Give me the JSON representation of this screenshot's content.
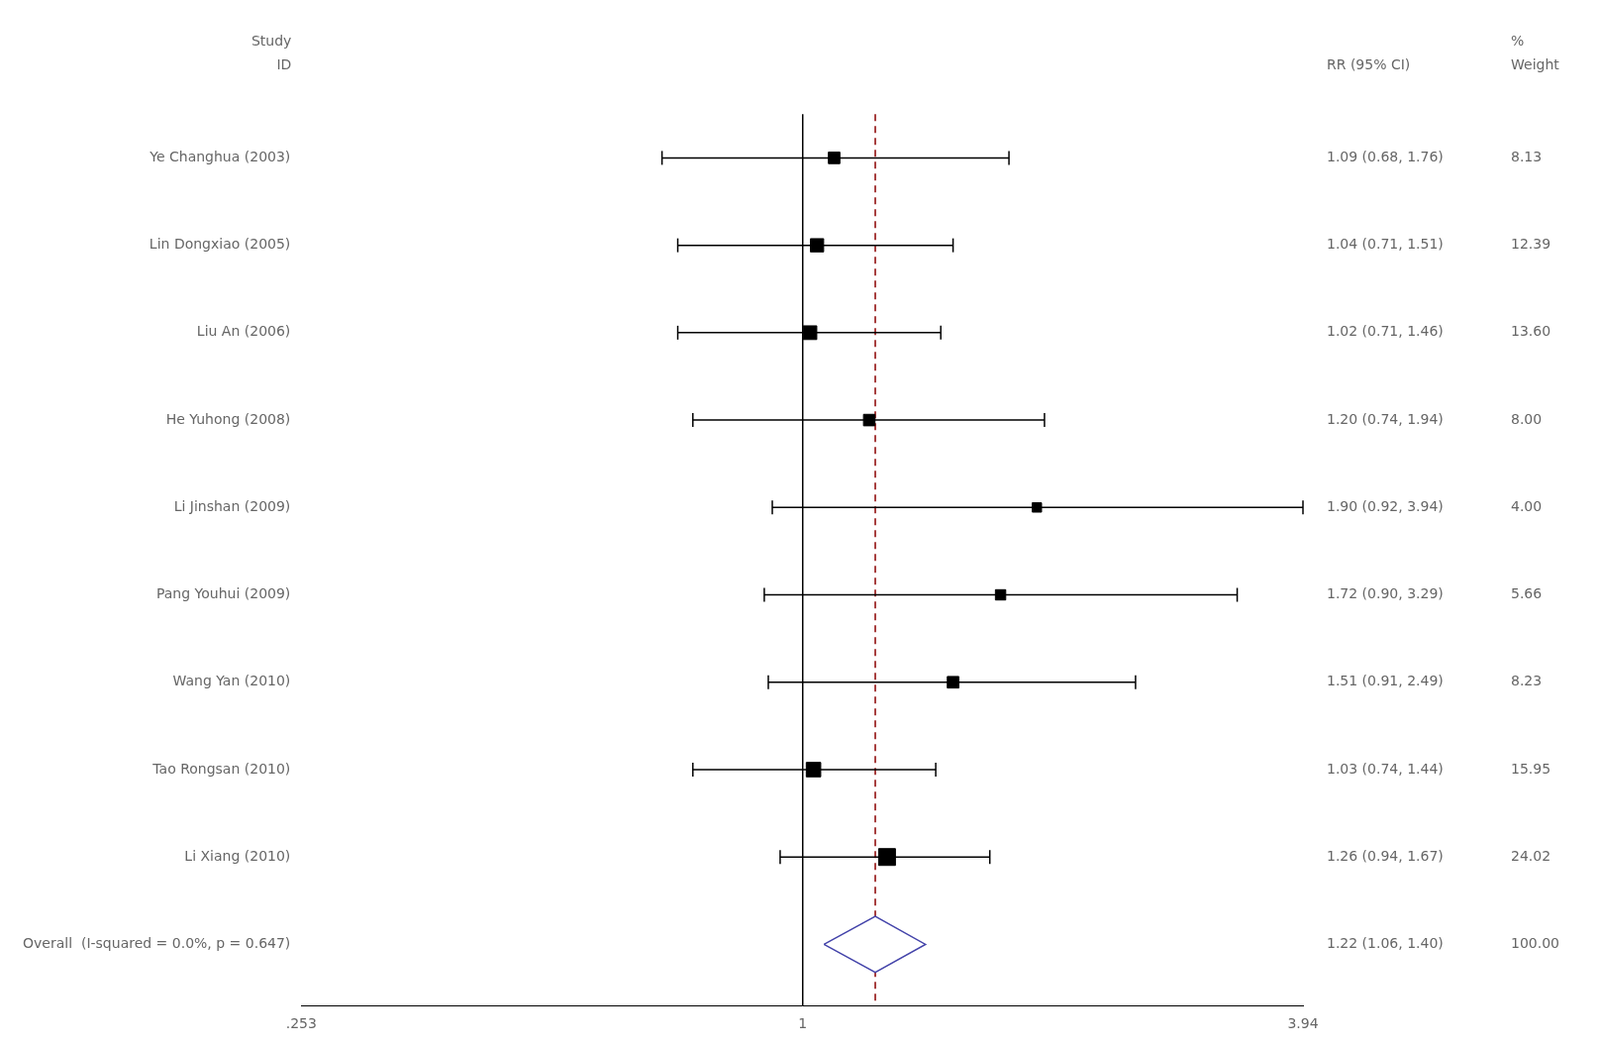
{
  "chart_data": {
    "type": "forest",
    "categories": [
      "Ye Changhua (2003)",
      "Lin Dongxiao (2005)",
      "Liu An (2006)",
      "He Yuhong (2008)",
      "Li Jinshan (2009)",
      "Pang Youhui (2009)",
      "Wang Yan (2010)",
      "Tao Rongsan (2010)",
      "Li Xiang (2010)"
    ],
    "values": [
      1.09,
      1.04,
      1.02,
      1.2,
      1.9,
      1.72,
      1.51,
      1.03,
      1.26
    ],
    "ci_low": [
      0.68,
      0.71,
      0.71,
      0.74,
      0.92,
      0.9,
      0.91,
      0.74,
      0.94
    ],
    "ci_high": [
      1.76,
      1.51,
      1.46,
      1.94,
      3.94,
      3.29,
      2.49,
      1.44,
      1.67
    ],
    "value_labels": [
      "1.09 (0.68, 1.76)",
      "1.04 (0.71, 1.51)",
      "1.02 (0.71, 1.46)",
      "1.20 (0.74, 1.94)",
      "1.90 (0.92, 3.94)",
      "1.72 (0.90, 3.29)",
      "1.51 (0.91, 2.49)",
      "1.03 (0.74, 1.44)",
      "1.26 (0.94, 1.67)"
    ],
    "weights": [
      8.13,
      12.39,
      13.6,
      8.0,
      4.0,
      5.66,
      8.23,
      15.95,
      24.02
    ],
    "weight_labels": [
      "8.13",
      "12.39",
      "13.60",
      "8.00",
      "4.00",
      "5.66",
      "8.23",
      "15.95",
      "24.02"
    ],
    "color": "#000000",
    "overall": {
      "label": "Overall  (I-squared = 0.0%, p = 0.647)",
      "value": 1.22,
      "ci_low": 1.06,
      "ci_high": 1.4,
      "value_label": "1.22 (1.06, 1.40)",
      "weight": 100.0,
      "weight_label": "100.00",
      "color": "#4444aa"
    },
    "reference_lines": [
      {
        "value": 1,
        "color": "#000000",
        "line_style": "solid"
      },
      {
        "value": 1.22,
        "color": "#8b0000",
        "line_style": "dashed"
      }
    ],
    "header_rows": [
      [
        "Study",
        null,
        "%"
      ],
      [
        "ID",
        "RR (95% CI)",
        "Weight"
      ]
    ],
    "xlim": [
      0.253,
      3.94
    ],
    "xticks": [
      {
        "value": 0.253,
        "label": ".253"
      },
      1,
      3.94
    ],
    "log": "x",
    "grid": false
  }
}
